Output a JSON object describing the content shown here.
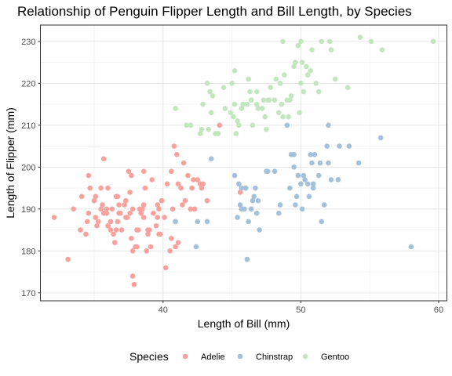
{
  "chart_data": {
    "type": "scatter",
    "title": "Relationship of Penguin Flipper Length and Bill Length, by Species",
    "xlabel": "Length of Bill (mm)",
    "ylabel": "Length of Flipper (mm)",
    "xlim": [
      31.1,
      60.6
    ],
    "ylim": [
      168.1,
      233.9
    ],
    "x_ticks": [
      40,
      50,
      60
    ],
    "y_ticks": [
      170,
      180,
      190,
      200,
      210,
      220,
      230
    ],
    "grid": true,
    "legend_title": "Species",
    "legend_position": "bottom",
    "series": [
      {
        "name": "Adelie",
        "color": "#F8A29E",
        "points": [
          [
            32.1,
            188
          ],
          [
            33.1,
            178
          ],
          [
            33.5,
            190
          ],
          [
            34.0,
            185
          ],
          [
            34.1,
            193
          ],
          [
            34.4,
            184
          ],
          [
            34.5,
            187
          ],
          [
            34.6,
            189
          ],
          [
            34.6,
            198
          ],
          [
            34.7,
            195
          ],
          [
            35.0,
            192
          ],
          [
            35.1,
            193
          ],
          [
            35.1,
            188
          ],
          [
            35.2,
            186
          ],
          [
            35.3,
            187
          ],
          [
            35.5,
            190
          ],
          [
            35.5,
            195
          ],
          [
            35.6,
            191
          ],
          [
            35.7,
            189
          ],
          [
            35.7,
            202
          ],
          [
            35.9,
            190
          ],
          [
            35.9,
            189
          ],
          [
            36.0,
            186
          ],
          [
            36.0,
            195
          ],
          [
            36.2,
            187
          ],
          [
            36.2,
            185
          ],
          [
            36.3,
            190
          ],
          [
            36.4,
            184
          ],
          [
            36.5,
            182
          ],
          [
            36.6,
            185
          ],
          [
            36.6,
            193
          ],
          [
            36.7,
            187
          ],
          [
            36.7,
            193
          ],
          [
            36.8,
            189
          ],
          [
            36.9,
            189
          ],
          [
            37.0,
            185
          ],
          [
            37.2,
            191
          ],
          [
            37.3,
            192
          ],
          [
            37.3,
            188
          ],
          [
            37.5,
            199
          ],
          [
            37.6,
            194
          ],
          [
            37.6,
            189
          ],
          [
            37.7,
            183
          ],
          [
            37.7,
            198
          ],
          [
            37.8,
            174
          ],
          [
            37.8,
            180
          ],
          [
            37.8,
            190
          ],
          [
            37.9,
            172
          ],
          [
            38.0,
            181
          ],
          [
            38.1,
            181
          ],
          [
            38.1,
            185
          ],
          [
            38.2,
            185
          ],
          [
            38.3,
            190
          ],
          [
            38.5,
            190
          ],
          [
            38.6,
            188
          ],
          [
            38.6,
            191
          ],
          [
            38.6,
            199
          ],
          [
            38.7,
            195
          ],
          [
            38.8,
            180
          ],
          [
            38.9,
            185
          ],
          [
            38.9,
            184
          ],
          [
            39.0,
            185
          ],
          [
            39.1,
            181
          ],
          [
            39.2,
            197
          ],
          [
            39.3,
            189
          ],
          [
            39.5,
            186
          ],
          [
            39.6,
            188
          ],
          [
            39.6,
            191
          ],
          [
            39.7,
            184
          ],
          [
            39.7,
            190
          ],
          [
            39.8,
            184
          ],
          [
            40.1,
            188
          ],
          [
            40.2,
            176
          ],
          [
            40.3,
            196
          ],
          [
            40.5,
            180
          ],
          [
            40.6,
            183
          ],
          [
            40.6,
            199
          ],
          [
            40.7,
            190
          ],
          [
            40.9,
            181
          ],
          [
            40.9,
            187
          ],
          [
            41.1,
            182
          ],
          [
            41.1,
            196
          ],
          [
            41.3,
            195
          ],
          [
            41.4,
            191
          ],
          [
            41.5,
            201
          ],
          [
            41.6,
            192
          ],
          [
            41.8,
            198
          ],
          [
            42.0,
            190
          ],
          [
            42.1,
            195
          ],
          [
            42.2,
            197
          ],
          [
            42.3,
            190
          ],
          [
            42.5,
            197
          ],
          [
            42.7,
            196
          ],
          [
            42.8,
            195
          ],
          [
            42.9,
            196
          ],
          [
            43.2,
            192
          ],
          [
            44.1,
            210
          ],
          [
            45.6,
            194
          ],
          [
            46.0,
            195
          ],
          [
            41.0,
            203
          ],
          [
            40.8,
            205
          ],
          [
            38.4,
            189
          ],
          [
            36.8,
            191
          ],
          [
            39.9,
            192
          ],
          [
            37.4,
            188
          ]
        ]
      },
      {
        "name": "Chinstrap",
        "color": "#A3C1DA",
        "points": [
          [
            40.9,
            187
          ],
          [
            42.4,
            181
          ],
          [
            42.5,
            187
          ],
          [
            43.2,
            187
          ],
          [
            43.5,
            202
          ],
          [
            45.2,
            198
          ],
          [
            45.4,
            188
          ],
          [
            45.5,
            196
          ],
          [
            45.6,
            191
          ],
          [
            45.7,
            190
          ],
          [
            45.7,
            195
          ],
          [
            46.0,
            195
          ],
          [
            46.1,
            178
          ],
          [
            46.2,
            187
          ],
          [
            46.4,
            190
          ],
          [
            46.5,
            192
          ],
          [
            46.6,
            193
          ],
          [
            46.7,
            195
          ],
          [
            46.8,
            189
          ],
          [
            46.9,
            192
          ],
          [
            47.0,
            185
          ],
          [
            47.5,
            199
          ],
          [
            47.6,
            199
          ],
          [
            48.1,
            199
          ],
          [
            48.5,
            191
          ],
          [
            49.0,
            210
          ],
          [
            49.2,
            195
          ],
          [
            49.3,
            203
          ],
          [
            49.5,
            200
          ],
          [
            49.6,
            191
          ],
          [
            49.7,
            193
          ],
          [
            49.8,
            198
          ],
          [
            50.0,
            196
          ],
          [
            50.1,
            190
          ],
          [
            50.2,
            198
          ],
          [
            50.3,
            197
          ],
          [
            50.5,
            196
          ],
          [
            50.6,
            193
          ],
          [
            50.7,
            203
          ],
          [
            50.8,
            201
          ],
          [
            50.9,
            196
          ],
          [
            51.0,
            203
          ],
          [
            51.3,
            198
          ],
          [
            51.4,
            201
          ],
          [
            51.5,
            187
          ],
          [
            51.7,
            191
          ],
          [
            51.9,
            205
          ],
          [
            52.0,
            210
          ],
          [
            52.2,
            197
          ],
          [
            52.7,
            197
          ],
          [
            52.8,
            205
          ],
          [
            53.5,
            205
          ],
          [
            54.2,
            201
          ],
          [
            55.8,
            207
          ],
          [
            58.0,
            181
          ],
          [
            49.5,
            203
          ],
          [
            50.9,
            195
          ],
          [
            52.0,
            201
          ],
          [
            45.9,
            190
          ],
          [
            48.4,
            189
          ]
        ]
      },
      {
        "name": "Gentoo",
        "color": "#C2E6BD",
        "points": [
          [
            40.9,
            214
          ],
          [
            41.7,
            210
          ],
          [
            42.0,
            210
          ],
          [
            42.7,
            208
          ],
          [
            42.8,
            209
          ],
          [
            42.9,
            215
          ],
          [
            43.2,
            220
          ],
          [
            43.3,
            209
          ],
          [
            43.4,
            218
          ],
          [
            43.5,
            213
          ],
          [
            43.6,
            217
          ],
          [
            43.8,
            208
          ],
          [
            44.0,
            208
          ],
          [
            44.4,
            219
          ],
          [
            44.5,
            214
          ],
          [
            44.9,
            213
          ],
          [
            45.0,
            220
          ],
          [
            45.1,
            212
          ],
          [
            45.2,
            215
          ],
          [
            45.3,
            208
          ],
          [
            45.4,
            211
          ],
          [
            45.5,
            210
          ],
          [
            45.7,
            214
          ],
          [
            45.8,
            215
          ],
          [
            46.1,
            215
          ],
          [
            46.2,
            221
          ],
          [
            46.3,
            218
          ],
          [
            46.4,
            216
          ],
          [
            46.5,
            210
          ],
          [
            46.8,
            215
          ],
          [
            46.9,
            214
          ],
          [
            47.2,
            214
          ],
          [
            47.3,
            216
          ],
          [
            47.4,
            212
          ],
          [
            47.5,
            209
          ],
          [
            47.6,
            216
          ],
          [
            47.7,
            216
          ],
          [
            47.8,
            219
          ],
          [
            48.1,
            216
          ],
          [
            48.2,
            221
          ],
          [
            48.4,
            213
          ],
          [
            48.5,
            220
          ],
          [
            48.6,
            215
          ],
          [
            48.7,
            212
          ],
          [
            48.8,
            222
          ],
          [
            49.0,
            216
          ],
          [
            49.1,
            212
          ],
          [
            49.2,
            216
          ],
          [
            49.3,
            217
          ],
          [
            49.5,
            224
          ],
          [
            49.6,
            225
          ],
          [
            49.8,
            229
          ],
          [
            49.9,
            213
          ],
          [
            50.0,
            230
          ],
          [
            50.1,
            225
          ],
          [
            50.2,
            218
          ],
          [
            50.4,
            224
          ],
          [
            50.5,
            222
          ],
          [
            50.7,
            223
          ],
          [
            50.8,
            228
          ],
          [
            51.1,
            220
          ],
          [
            51.3,
            218
          ],
          [
            51.5,
            230
          ],
          [
            52.1,
            230
          ],
          [
            52.2,
            228
          ],
          [
            52.5,
            221
          ],
          [
            53.4,
            219
          ],
          [
            54.3,
            231
          ],
          [
            55.1,
            230
          ],
          [
            55.9,
            228
          ],
          [
            59.6,
            230
          ],
          [
            48.7,
            230
          ],
          [
            46.8,
            218
          ],
          [
            45.2,
            223
          ],
          [
            50.0,
            220
          ]
        ]
      }
    ]
  }
}
